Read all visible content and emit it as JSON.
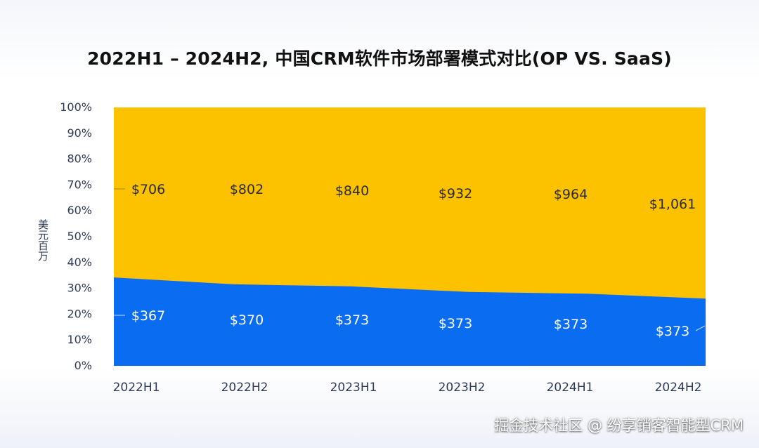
{
  "chart_data": {
    "type": "area",
    "stacked_percent": true,
    "title": "2022H1 – 2024H2, 中国CRM软件市场部署模式对比(OP VS. SaaS)",
    "ylabel": "美元百万",
    "categories": [
      "2022H1",
      "2022H2",
      "2023H1",
      "2023H2",
      "2024H1",
      "2024H2"
    ],
    "yticks": [
      "0%",
      "10%",
      "20%",
      "30%",
      "40%",
      "50%",
      "60%",
      "70%",
      "80%",
      "90%",
      "100%"
    ],
    "ylim": [
      0,
      100
    ],
    "grid": false,
    "legend": "none",
    "series": [
      {
        "values": [
          367,
          370,
          373,
          373,
          373,
          373
        ],
        "labels": [
          "$367",
          "$370",
          "$373",
          "$373",
          "$373",
          "$373"
        ],
        "color": "#0a6cf0"
      },
      {
        "values": [
          706,
          802,
          840,
          932,
          964,
          1061
        ],
        "labels": [
          "$706",
          "$802",
          "$840",
          "$932",
          "$964",
          "$1,061"
        ],
        "color": "#fcc200"
      }
    ]
  },
  "watermark": "掘金技术社区 @ 纷享销客智能型CRM"
}
